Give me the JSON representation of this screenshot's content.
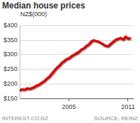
{
  "chart_data": {
    "type": "line",
    "title": "Median house prices",
    "subtitle": "NZ$(000)",
    "annotations": [
      "INTEREST.CO.NZ",
      "SOURCE: REINZ"
    ],
    "x": [
      2000,
      2000.25,
      2000.5,
      2000.75,
      2001,
      2001.25,
      2001.5,
      2001.75,
      2002,
      2002.25,
      2002.5,
      2002.75,
      2003,
      2003.25,
      2003.5,
      2003.75,
      2004,
      2004.25,
      2004.5,
      2004.75,
      2005,
      2005.25,
      2005.5,
      2005.75,
      2006,
      2006.25,
      2006.5,
      2006.75,
      2007,
      2007.25,
      2007.5,
      2007.75,
      2008,
      2008.25,
      2008.5,
      2008.75,
      2009,
      2009.25,
      2009.5,
      2009.75,
      2010,
      2010.25,
      2010.5,
      2010.75,
      2011,
      2011.25
    ],
    "values": [
      178,
      182,
      180,
      185,
      183,
      186,
      190,
      195,
      198,
      205,
      210,
      218,
      225,
      235,
      245,
      255,
      262,
      272,
      278,
      285,
      288,
      295,
      300,
      305,
      310,
      318,
      322,
      330,
      335,
      345,
      350,
      347,
      345,
      340,
      335,
      330,
      330,
      338,
      345,
      352,
      355,
      358,
      352,
      362,
      355,
      358
    ],
    "color": "#e00000",
    "xlim": [
      2000,
      2011.5
    ],
    "xticks": [
      2005,
      2011
    ],
    "ylim": [
      150,
      400
    ],
    "yticks": [
      {
        "value": 150,
        "label": "$150"
      },
      {
        "value": 200,
        "label": "$200"
      },
      {
        "value": 250,
        "label": "$250"
      },
      {
        "value": 300,
        "label": "$300"
      },
      {
        "value": 350,
        "label": "$350"
      },
      {
        "value": 400,
        "label": "$400"
      }
    ],
    "grid": true
  }
}
